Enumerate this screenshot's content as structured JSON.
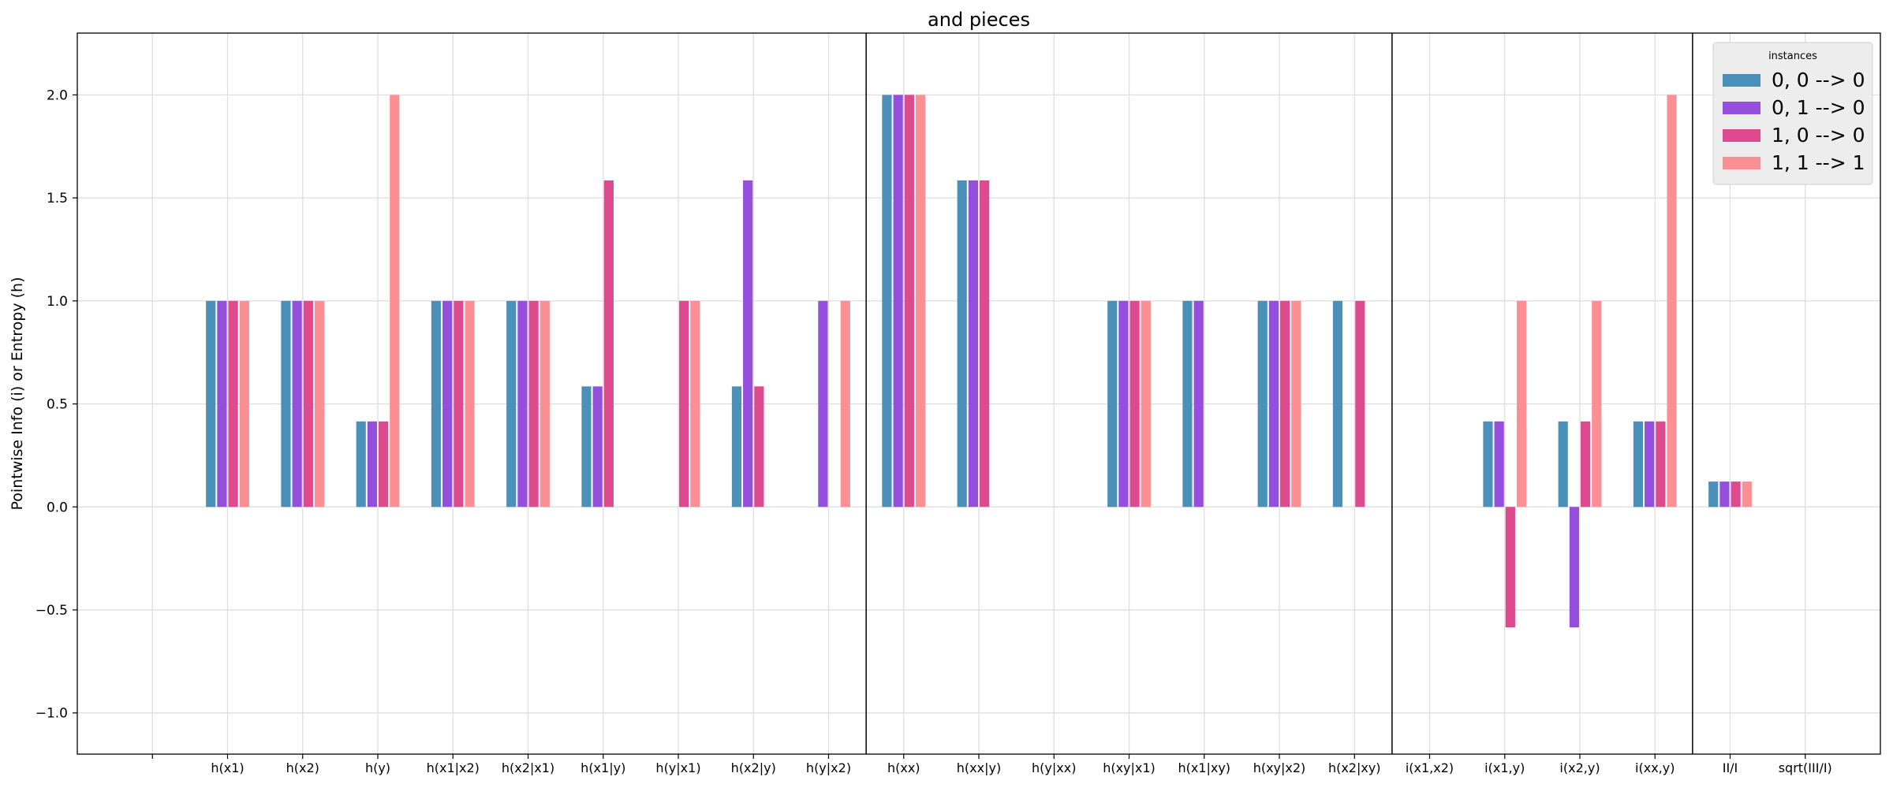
{
  "chart_data": {
    "type": "bar",
    "title": "and pieces",
    "ylabel": "Pointwise Info (i) or Entropy (h)",
    "xlabel": "",
    "ylim": [
      -1.2,
      2.3
    ],
    "yticks": [
      -1.0,
      -0.5,
      0.0,
      0.5,
      1.0,
      1.5,
      2.0
    ],
    "ytick_labels": [
      "−1.0",
      "−0.5",
      "0.0",
      "0.5",
      "1.0",
      "1.5",
      "2.0"
    ],
    "grid": true,
    "legend": {
      "title": "instances",
      "placement": "top-right"
    },
    "categories": [
      "",
      "h(x1)",
      "h(x2)",
      "h(y)",
      "h(x1|x2)",
      "h(x2|x1)",
      "h(x1|y)",
      "h(y|x1)",
      "h(x2|y)",
      "h(y|x2)",
      "h(xx)",
      "h(xx|y)",
      "h(y|xx)",
      "h(xy|x1)",
      "h(x1|xy)",
      "h(xy|x2)",
      "h(x2|xy)",
      "i(x1,x2)",
      "i(x1,y)",
      "i(x2,y)",
      "i(xx,y)",
      "II/I",
      "sqrt(III/I)"
    ],
    "separators_after": [
      9,
      16,
      20
    ],
    "series": [
      {
        "name": "0, 0 --> 0",
        "color": "#4a90b8",
        "values": [
          0,
          1.0,
          1.0,
          0.415,
          1.0,
          1.0,
          0.585,
          0,
          0.585,
          0,
          2.0,
          1.585,
          0,
          1.0,
          1.0,
          1.0,
          1.0,
          0,
          0.415,
          0.415,
          0.415,
          0.123,
          0
        ]
      },
      {
        "name": "0, 1 --> 0",
        "color": "#944fdc",
        "values": [
          0,
          1.0,
          1.0,
          0.415,
          1.0,
          1.0,
          0.585,
          0,
          1.585,
          1.0,
          2.0,
          1.585,
          0,
          1.0,
          1.0,
          1.0,
          0,
          0,
          0.415,
          -0.585,
          0.415,
          0.123,
          0
        ]
      },
      {
        "name": "1, 0 --> 0",
        "color": "#dd4a8e",
        "values": [
          0,
          1.0,
          1.0,
          0.415,
          1.0,
          1.0,
          1.585,
          1.0,
          0.585,
          0,
          2.0,
          1.585,
          0,
          1.0,
          0,
          1.0,
          1.0,
          0,
          -0.585,
          0.415,
          0.415,
          0.123,
          0
        ]
      },
      {
        "name": "1, 1 --> 1",
        "color": "#fc8f93",
        "values": [
          0,
          1.0,
          1.0,
          2.0,
          1.0,
          1.0,
          0,
          1.0,
          0,
          1.0,
          2.0,
          0,
          0,
          1.0,
          0,
          1.0,
          0,
          0,
          1.0,
          1.0,
          2.0,
          0.123,
          0
        ]
      }
    ]
  }
}
